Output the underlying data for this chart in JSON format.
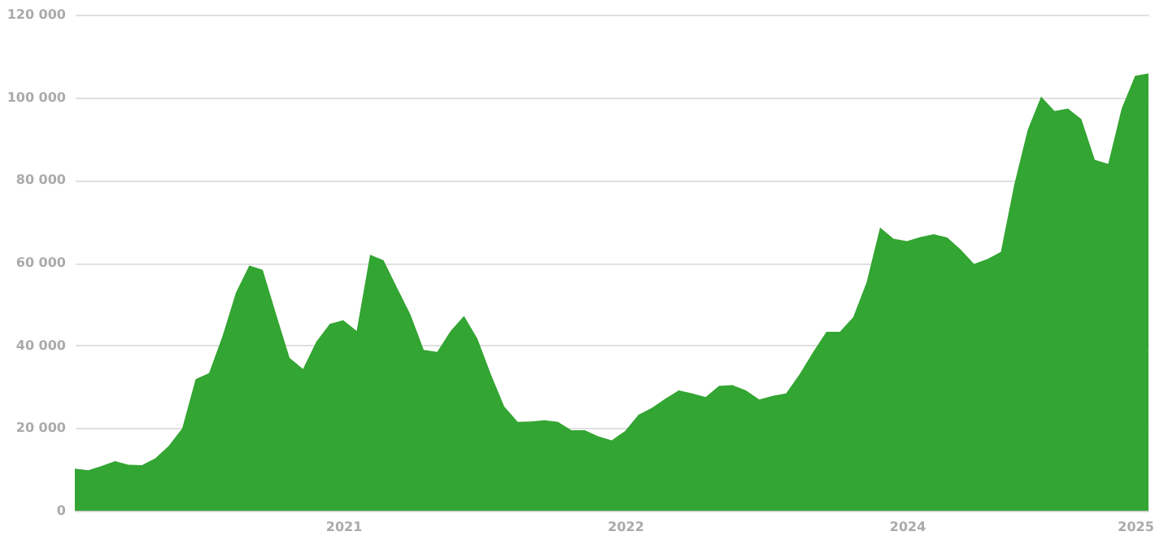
{
  "chart_data": {
    "type": "area",
    "categories": [
      null,
      null,
      null,
      null,
      null,
      null,
      null,
      null,
      null,
      null,
      null,
      null,
      null,
      null,
      null,
      null,
      null,
      null,
      null,
      null,
      "2021",
      null,
      null,
      null,
      null,
      null,
      null,
      null,
      null,
      null,
      null,
      null,
      null,
      null,
      null,
      null,
      null,
      null,
      null,
      null,
      null,
      "2022",
      null,
      null,
      null,
      null,
      null,
      null,
      null,
      null,
      null,
      null,
      null,
      null,
      null,
      null,
      null,
      null,
      null,
      null,
      null,
      null,
      "2024",
      null,
      null,
      null,
      null,
      null,
      null,
      null,
      null,
      null,
      null,
      null,
      null,
      null,
      null,
      null,
      null,
      "2025",
      null
    ],
    "series": [
      {
        "color": "#33a532",
        "values": [
          10200,
          9800,
          10800,
          12000,
          11100,
          11000,
          12700,
          15700,
          19900,
          31800,
          33300,
          42200,
          52700,
          59300,
          58300,
          47500,
          37000,
          34300,
          40900,
          45200,
          46100,
          43500,
          61900,
          60600,
          54000,
          47500,
          38900,
          38400,
          43500,
          47100,
          41600,
          33000,
          25200,
          21500,
          21600,
          21900,
          21500,
          19500,
          19500,
          18000,
          17000,
          19300,
          23200,
          24900,
          27100,
          29100,
          28400,
          27500,
          30200,
          30400,
          29100,
          26900,
          27800,
          28400,
          33000,
          38300,
          43300,
          43300,
          46800,
          55300,
          68500,
          65800,
          65200,
          66200,
          66900,
          66100,
          63200,
          59700,
          60900,
          62600,
          78900,
          92100,
          100200,
          96700,
          97300,
          94700,
          84900,
          83900,
          97300,
          105200,
          105800
        ]
      }
    ],
    "ylim": [
      0,
      120000
    ],
    "yticks": [
      {
        "value": 0,
        "label": "0"
      },
      {
        "value": 20000,
        "label": "20 000"
      },
      {
        "value": 40000,
        "label": "40 000"
      },
      {
        "value": 60000,
        "label": "60 000"
      },
      {
        "value": 80000,
        "label": "80 000"
      },
      {
        "value": 100000,
        "label": "100 000"
      },
      {
        "value": 120000,
        "label": "120 000"
      }
    ],
    "grid": "y"
  }
}
